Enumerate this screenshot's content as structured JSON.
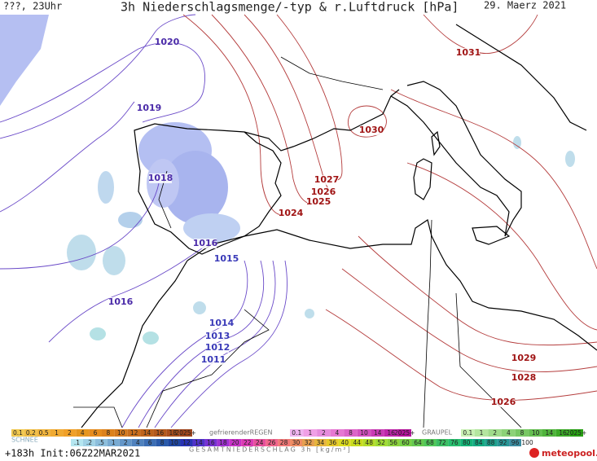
{
  "header": {
    "left": "???, 23Uhr",
    "title": "3h Niederschlagsmenge/-typ & r.Luftdruck [hPa]",
    "date": "29. Maerz 2021"
  },
  "isobar_labels": [
    {
      "text": "1020",
      "color": "#4a2aa8"
    },
    {
      "text": "1019",
      "color": "#4a2aa8"
    },
    {
      "text": "1018",
      "color": "#4a2aa8"
    },
    {
      "text": "1016",
      "color": "#4a2aa8"
    },
    {
      "text": "1015",
      "color": "#3a3ab8"
    },
    {
      "text": "1016",
      "color": "#4a2aa8"
    },
    {
      "text": "1014",
      "color": "#3a3ab8"
    },
    {
      "text": "1013",
      "color": "#3a3ab8"
    },
    {
      "text": "1012",
      "color": "#3a3ab8"
    },
    {
      "text": "1011",
      "color": "#3a3ab8"
    },
    {
      "text": "1031",
      "color": "#a01414"
    },
    {
      "text": "1030",
      "color": "#a01414"
    },
    {
      "text": "1027",
      "color": "#a01414"
    },
    {
      "text": "1026",
      "color": "#a01414"
    },
    {
      "text": "1025",
      "color": "#a01414"
    },
    {
      "text": "1024",
      "color": "#a01414"
    },
    {
      "text": "1029",
      "color": "#a01414"
    },
    {
      "text": "1028",
      "color": "#a01414"
    },
    {
      "text": "1026",
      "color": "#a01414"
    }
  ],
  "legend": {
    "rain": {
      "labels": [
        "0.1",
        "0.2",
        "0.5",
        "1",
        "2",
        "4",
        "6",
        "8",
        "10",
        "12",
        "14",
        "16",
        "18",
        "2025+"
      ],
      "colors": [
        "#f0c850",
        "#f0be46",
        "#f0b43c",
        "#f0aa32",
        "#f0a028",
        "#e6961e",
        "#e68c1e",
        "#dc821e",
        "#d2781e",
        "#c86e1e",
        "#be641e",
        "#b45a1e",
        "#aa501e",
        "#a0461e"
      ]
    },
    "snow_label": "SCHNEE",
    "freezing": {
      "name": "gefrierenderREGEN",
      "labels": [
        "0.1",
        "1",
        "2",
        "4",
        "8",
        "10",
        "14",
        "16",
        "2025+"
      ],
      "colors": [
        "#f0b4f0",
        "#f0a0e6",
        "#e68cdc",
        "#e678d2",
        "#dc64c8",
        "#d250be",
        "#c83cb4",
        "#be28aa",
        "#b4149b"
      ]
    },
    "graupel": {
      "name": "GRAUPEL",
      "labels": [
        "0.1",
        "1",
        "2",
        "4",
        "8",
        "10",
        "14",
        "16",
        "2025+"
      ],
      "colors": [
        "#c8f0b4",
        "#b4e6a0",
        "#a0dc8c",
        "#8cd278",
        "#78c864",
        "#64be50",
        "#50b43c",
        "#3caa28",
        "#28a014"
      ]
    },
    "total": {
      "name": "GESAMTNIEDERSCHLAG 3h [kg/m²]",
      "labels": [
        ".1",
        ".2",
        ".5",
        "1",
        "2",
        "4",
        "6",
        "8",
        "10",
        "12",
        "14",
        "16",
        "18",
        "20",
        "22",
        "24",
        "26",
        "28",
        "30",
        "32",
        "34",
        "36",
        "40",
        "44",
        "48",
        "52",
        "56",
        "60",
        "64",
        "68",
        "72",
        "76",
        "80",
        "84",
        "88",
        "92",
        "96",
        "100"
      ],
      "colors": [
        "#b4e6f0",
        "#a0d2e6",
        "#8cbedc",
        "#78aad2",
        "#6496c8",
        "#5082be",
        "#3c6eb4",
        "#2a5aaa",
        "#1e46a0",
        "#2832b4",
        "#5032c8",
        "#7832d2",
        "#a032d2",
        "#c832c8",
        "#dc3cb4",
        "#e6509b",
        "#f0648c",
        "#f07878",
        "#f08c64",
        "#e6a050",
        "#e6b43c",
        "#e6c828",
        "#dcdc1e",
        "#c8dc1e",
        "#b4dc28",
        "#a0dc32",
        "#8cd23c",
        "#78d246",
        "#64c850",
        "#50c85a",
        "#3cbe64",
        "#28be6e",
        "#14b478",
        "#14aa82",
        "#1ea08c",
        "#289696",
        "#3c8ca0",
        "#ffffff"
      ]
    }
  },
  "footer": {
    "run": "+183h Init:06Z22MAR2021",
    "brand": "meteopool.org"
  }
}
